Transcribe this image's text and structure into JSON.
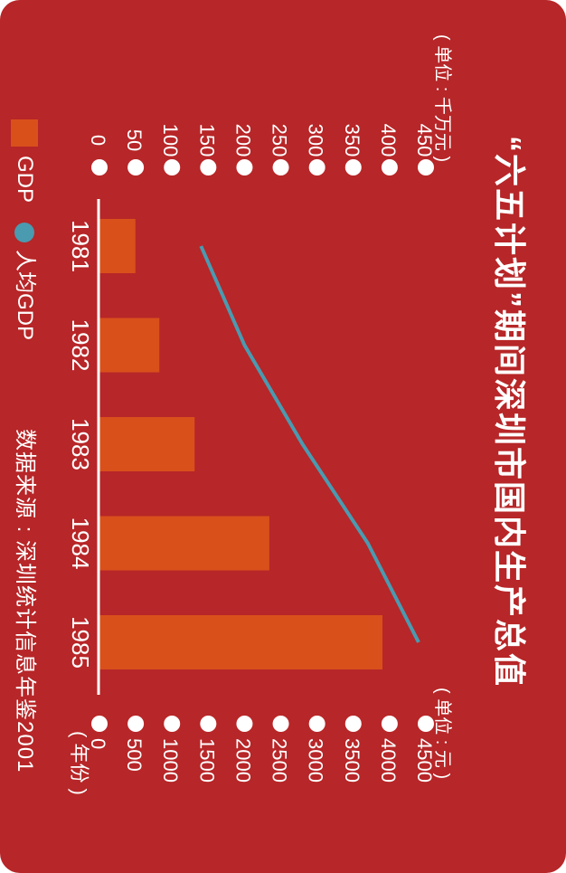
{
  "colors": {
    "background": "#b72628",
    "bar": "#d9501b",
    "line": "#4a9ab0",
    "text": "#ffffff"
  },
  "chart_data": {
    "type": "bar",
    "title": "“六五计划”期间深圳市国内生产总值",
    "categories": [
      "1981",
      "1982",
      "1983",
      "1984",
      "1985"
    ],
    "x_axis_unit": "( 年份 )",
    "series": [
      {
        "name": "GDP",
        "type": "bar",
        "axis": "gdp",
        "values": [
          49.6,
          82.6,
          131.2,
          234.2,
          390.2
        ]
      },
      {
        "name": "人均GDP",
        "type": "line",
        "axis": "per_capita",
        "values": [
          1400,
          2000,
          2800,
          3700,
          4400
        ]
      }
    ],
    "axes": {
      "gdp": {
        "unit": "( 单位 : 千万元 )",
        "ylim": [
          0,
          450
        ],
        "ticks": [
          0,
          50,
          100,
          150,
          200,
          250,
          300,
          350,
          400,
          450
        ],
        "tick_labels": [
          "0",
          "50",
          "100",
          "150",
          "200",
          "250",
          "300",
          "350",
          "400",
          "450"
        ]
      },
      "per_capita": {
        "unit": "( 单位 : 元 )",
        "ylim": [
          0,
          4500
        ],
        "ticks": [
          0,
          500,
          1000,
          1500,
          2000,
          2500,
          3000,
          3500,
          4000,
          4500
        ],
        "tick_labels": [
          "0",
          "500",
          "1000",
          "1500",
          "2000",
          "2500",
          "3000",
          "3500",
          "4000",
          "4500"
        ]
      }
    },
    "legend": [
      "GDP",
      "人均GDP"
    ],
    "legend_placement": "bottom-left",
    "grid": false,
    "source": "数据来源 : 深圳统计信息年鉴2001"
  }
}
